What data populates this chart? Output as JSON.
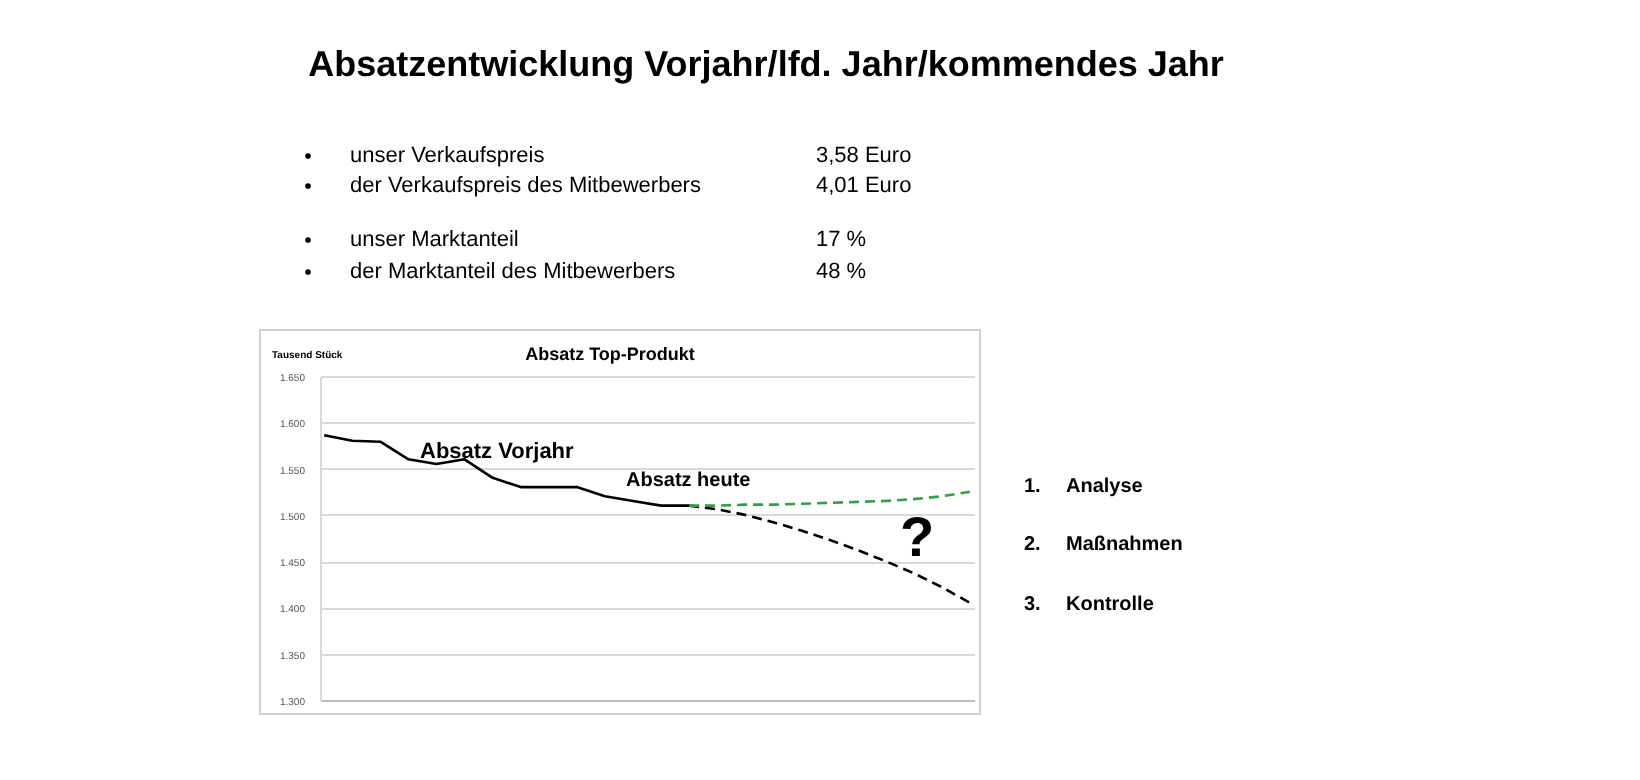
{
  "chart_data": {
    "type": "line",
    "title": "Absatzentwicklung Vorjahr/lfd. Jahr/kommendes Jahr",
    "subtitle": "Absatz Top-Produkt",
    "ylabel": "Tausend Stück",
    "categories": [
      null,
      null,
      null,
      null,
      null,
      null,
      null,
      null,
      null,
      null,
      null,
      null,
      null,
      null,
      null,
      null,
      null,
      null,
      null,
      null,
      null,
      null,
      null,
      null
    ],
    "series": [
      {
        "name": "Absatz Vorjahr",
        "color": "#000000",
        "line_style": "solid",
        "values": [
          1586,
          1580,
          1579,
          1560,
          1555,
          1560,
          1540,
          1530,
          1530,
          1530,
          1520,
          1515,
          1510,
          1510,
          null,
          null,
          null,
          null,
          null,
          null,
          null,
          null,
          null,
          null
        ]
      },
      {
        "color": "#000000",
        "line_style": "dashed",
        "values": [
          null,
          null,
          null,
          null,
          null,
          null,
          null,
          null,
          null,
          null,
          null,
          null,
          null,
          1510,
          1506,
          1500,
          1492,
          1483,
          1473,
          1462,
          1450,
          1437,
          1422,
          1405
        ]
      },
      {
        "color": "#3a9a4a",
        "line_style": "dashed",
        "values": [
          null,
          null,
          null,
          null,
          null,
          null,
          null,
          null,
          null,
          null,
          null,
          null,
          null,
          1510,
          1510,
          1511,
          1511,
          1512,
          1513,
          1514,
          1515,
          1517,
          1520,
          1525
        ]
      }
    ],
    "ylim": [
      1300,
      1650
    ],
    "yticks": [
      {
        "value": 1300,
        "label": "1.300"
      },
      {
        "value": 1350,
        "label": "1.350"
      },
      {
        "value": 1400,
        "label": "1.400"
      },
      {
        "value": 1450,
        "label": "1.450"
      },
      {
        "value": 1500,
        "label": "1.500"
      },
      {
        "value": 1550,
        "label": "1.550"
      },
      {
        "value": 1600,
        "label": "1.600"
      },
      {
        "value": 1650,
        "label": "1.650"
      }
    ],
    "grid": "y",
    "marker": "none",
    "tick_labels": "y",
    "annotations": [
      "unser Verkaufspreis",
      "3,58 Euro",
      "der Verkaufspreis des Mitbewerbers",
      "4,01 Euro",
      "unser Marktanteil",
      "17 %",
      "der Marktanteil des Mitbewerbers",
      "48 %",
      "Absatz heute",
      "?",
      "1.",
      "Analyse",
      "2.",
      "Maßnahmen",
      "3.",
      "Kontrolle"
    ]
  }
}
